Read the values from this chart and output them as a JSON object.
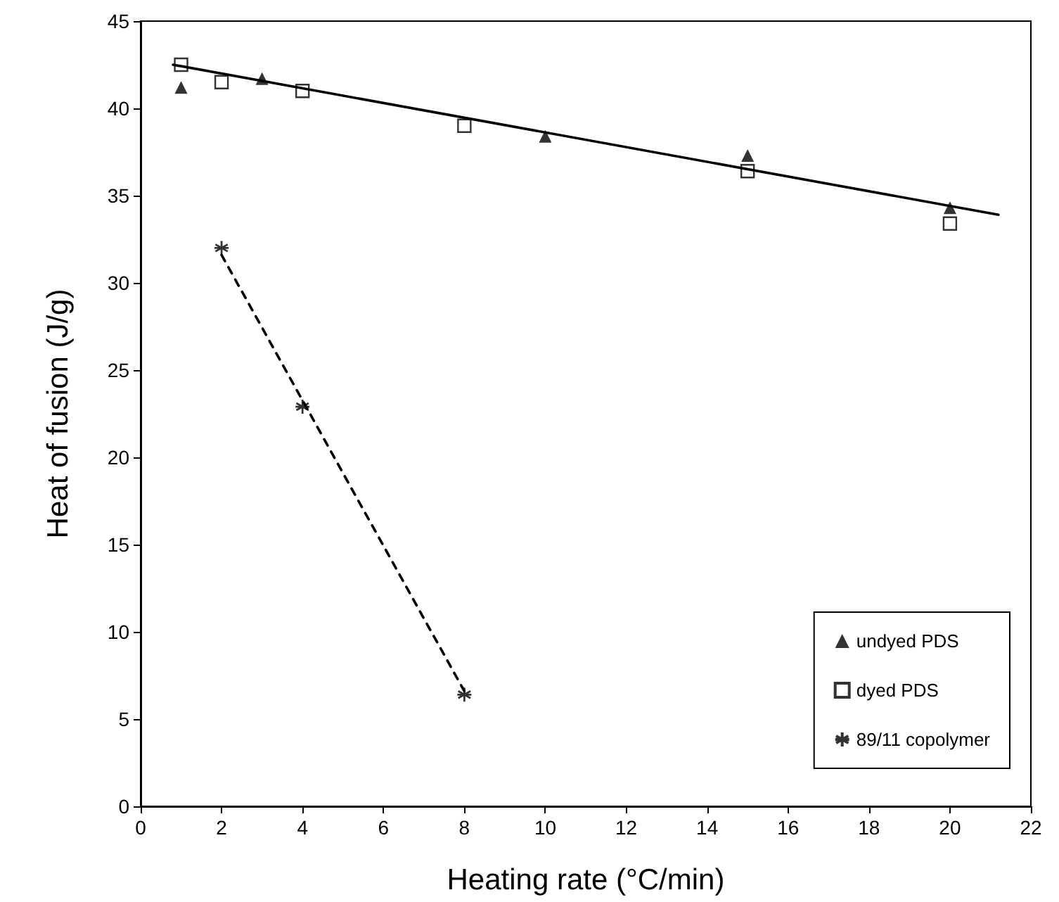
{
  "chart_data": {
    "type": "scatter",
    "xlabel": "Heating rate (°C/min)",
    "ylabel": "Heat of fusion (J/g)",
    "xlim": [
      0,
      22
    ],
    "xticks": [
      0,
      2,
      4,
      6,
      8,
      10,
      12,
      14,
      16,
      18,
      20,
      22
    ],
    "ylim": [
      0,
      45
    ],
    "yticks": [
      0,
      5,
      10,
      15,
      20,
      25,
      30,
      35,
      40,
      45
    ],
    "grid": false,
    "legend": "bottom right",
    "series": [
      {
        "name": "undyed PDS",
        "color": "#000000",
        "marker": "triangle",
        "x": [
          1,
          3,
          10,
          15,
          20
        ],
        "values": [
          41.2,
          41.7,
          38.4,
          37.3,
          34.3
        ]
      },
      {
        "name": "dyed PDS",
        "color": "#000000",
        "marker": "square",
        "x": [
          1,
          2,
          4,
          8,
          15,
          20
        ],
        "values": [
          42.5,
          41.5,
          41.0,
          39.0,
          36.4,
          33.4
        ]
      },
      {
        "name": "89/11 copolymer",
        "color": "#000000",
        "marker": "cross",
        "x": [
          2,
          4,
          8
        ],
        "values": [
          32.0,
          22.9,
          6.4
        ]
      },
      {
        "type": "line",
        "color": "#000000",
        "marker": "none",
        "line_style": "solid",
        "x": [
          0.8,
          21.2
        ],
        "values": [
          42.5,
          33.9
        ]
      },
      {
        "type": "line",
        "color": "#000000",
        "marker": "none",
        "line_style": "dashed",
        "x": [
          2,
          8
        ],
        "values": [
          31.6,
          6.6
        ]
      }
    ]
  }
}
